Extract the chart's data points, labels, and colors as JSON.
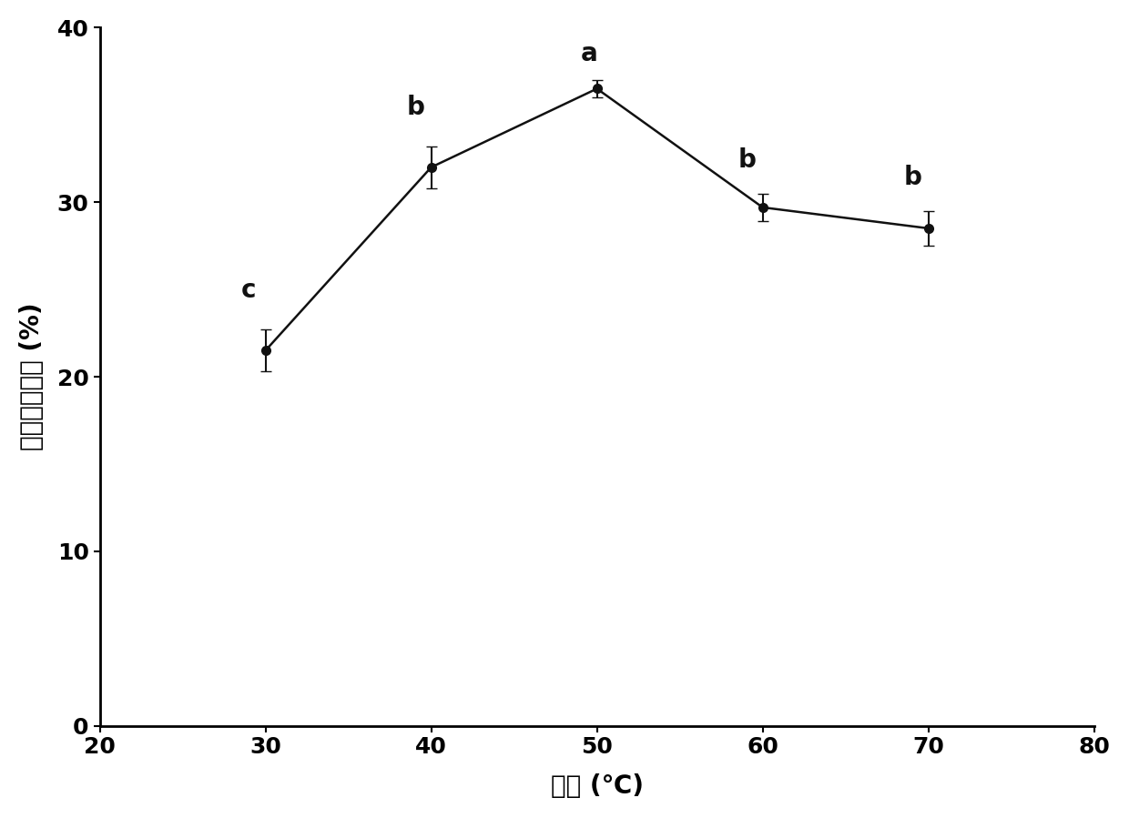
{
  "x": [
    30,
    40,
    50,
    60,
    70
  ],
  "y": [
    21.5,
    32.0,
    36.5,
    29.7,
    28.5
  ],
  "yerr": [
    1.2,
    1.2,
    0.5,
    0.8,
    1.0
  ],
  "labels": [
    "c",
    "b",
    "a",
    "b",
    "b"
  ],
  "xlabel": "温度 (℃)",
  "ylabel": "酪氧酸抑制率 (%)",
  "xlim": [
    20,
    80
  ],
  "ylim": [
    0,
    40
  ],
  "xticks": [
    20,
    30,
    40,
    50,
    60,
    70,
    80
  ],
  "yticks": [
    0,
    10,
    20,
    30,
    40
  ],
  "line_color": "#111111",
  "markersize": 7,
  "linewidth": 1.8,
  "label_fontsize": 20,
  "tick_fontsize": 18,
  "annotation_fontsize": 20,
  "annotation_fontweight": "bold",
  "background_color": "#ffffff",
  "capsize": 4,
  "elinewidth": 1.5,
  "label_offsets_x": [
    -1.5,
    -1.5,
    -1.0,
    -1.5,
    -1.5
  ],
  "label_offsets_y": [
    1.5,
    1.5,
    0.8,
    1.2,
    1.2
  ]
}
